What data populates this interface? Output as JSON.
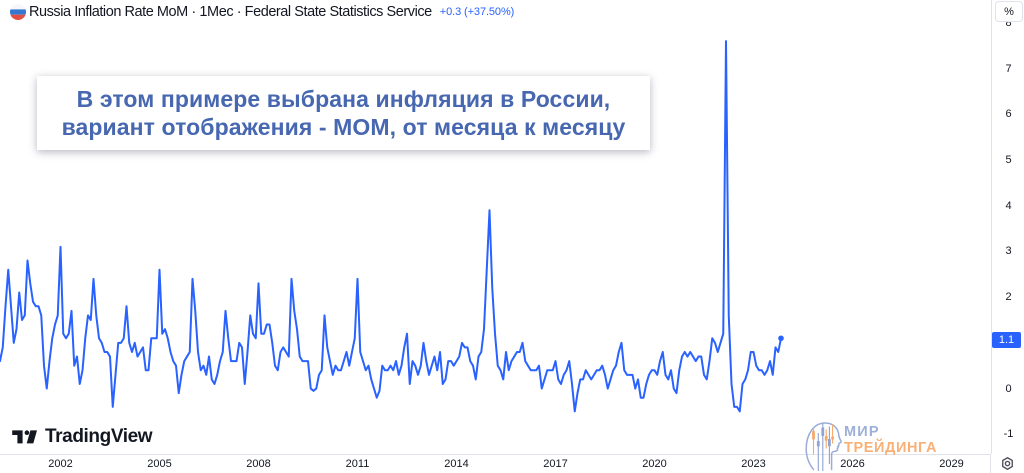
{
  "header": {
    "flag_alt": "Russia flag",
    "title": "Russia Inflation Rate MoM · 1Мес · Federal State Statistics Service",
    "change": "+0.3 (+37.50%)",
    "change_color": "#2962FF",
    "flag_colors": {
      "top": "#f5f7fa",
      "middle": "#3678d0",
      "bottom": "#e54d42"
    }
  },
  "overlay_note": {
    "line1": "В этом примере выбрана инфляция в России,",
    "line2": "вариант отображения - MOM, от месяца к месяцу",
    "text_color": "#4767b0",
    "background": "#ffffff"
  },
  "price_scale": {
    "unit_button_label": "%",
    "tick_labels": [
      "8",
      "7",
      "6",
      "5",
      "4",
      "3",
      "2",
      "0",
      "-1"
    ],
    "last_price_label": "1.1",
    "last_price_badge_color": "#2962FF"
  },
  "time_scale": {
    "tick_labels": [
      "2002",
      "2005",
      "2008",
      "2011",
      "2014",
      "2017",
      "2020",
      "2023",
      "2026",
      "2029"
    ]
  },
  "branding": {
    "logo_text": "TradingView",
    "logo_color": "#131722"
  },
  "watermark": {
    "line1": "МИР",
    "line2": "ТРЕЙДИНГА",
    "line1_color": "#9db0d9",
    "line2_color": "#f8b077",
    "icon_blue": "#8fa3d4",
    "icon_orange": "#f5a96b"
  },
  "chart_data": {
    "type": "line",
    "title": "Russia Inflation Rate MoM",
    "series_name": "Russia Inflation Rate MoM, % (monthly)",
    "line_color": "#2962FF",
    "y_unit": "%",
    "grid": "off",
    "x_tick_labels": [
      "2002",
      "2005",
      "2008",
      "2011",
      "2014",
      "2017",
      "2020",
      "2023",
      "2026",
      "2029"
    ],
    "y_tick_values": [
      8,
      7,
      6,
      5,
      4,
      3,
      2,
      0,
      -1
    ],
    "x_range_years": [
      2000.1667,
      2030.1667
    ],
    "y_range": [
      -1.41,
      8.5
    ],
    "start_year": 2000,
    "start_month": 1,
    "last_value": 1.1,
    "values": [
      2.3,
      1.0,
      0.6,
      0.9,
      1.8,
      2.6,
      1.8,
      1.0,
      1.3,
      2.1,
      1.5,
      1.6,
      2.8,
      2.3,
      1.9,
      1.8,
      1.8,
      1.6,
      0.5,
      0.0,
      0.6,
      1.1,
      1.4,
      1.6,
      3.1,
      1.2,
      1.1,
      1.2,
      1.7,
      0.5,
      0.7,
      0.1,
      0.4,
      1.1,
      1.6,
      1.5,
      2.4,
      1.6,
      1.1,
      1.0,
      0.8,
      0.8,
      0.7,
      -0.4,
      0.3,
      1.0,
      1.0,
      1.1,
      1.8,
      1.0,
      0.8,
      1.0,
      0.7,
      0.8,
      0.9,
      0.4,
      0.4,
      1.1,
      1.1,
      1.1,
      2.6,
      1.2,
      1.3,
      1.1,
      0.8,
      0.6,
      0.5,
      -0.1,
      0.3,
      0.6,
      0.7,
      0.8,
      2.4,
      1.7,
      0.8,
      0.4,
      0.5,
      0.3,
      0.7,
      0.2,
      0.1,
      0.3,
      0.6,
      0.8,
      1.7,
      1.1,
      0.6,
      0.6,
      0.6,
      1.0,
      0.9,
      0.1,
      0.8,
      1.6,
      1.2,
      1.1,
      2.3,
      1.2,
      1.2,
      1.4,
      1.4,
      1.0,
      0.5,
      0.4,
      0.8,
      0.9,
      0.8,
      0.7,
      2.4,
      1.7,
      1.3,
      0.7,
      0.6,
      0.6,
      0.6,
      0.0,
      -0.05,
      0.0,
      0.3,
      0.4,
      1.6,
      0.9,
      0.6,
      0.3,
      0.5,
      0.4,
      0.4,
      0.6,
      0.8,
      0.5,
      0.8,
      1.1,
      2.4,
      0.8,
      0.6,
      0.4,
      0.5,
      0.2,
      0.0,
      -0.2,
      -0.05,
      0.5,
      0.4,
      0.4,
      0.5,
      0.4,
      0.6,
      0.3,
      0.5,
      0.9,
      1.2,
      0.1,
      0.6,
      0.5,
      0.3,
      0.5,
      1.0,
      0.6,
      0.3,
      0.5,
      0.7,
      0.4,
      0.8,
      0.1,
      0.2,
      0.6,
      0.6,
      0.5,
      0.6,
      0.7,
      1.0,
      0.9,
      0.9,
      0.6,
      0.5,
      0.2,
      0.7,
      0.8,
      1.3,
      2.6,
      3.9,
      2.2,
      1.2,
      0.5,
      0.4,
      0.2,
      0.8,
      0.4,
      0.6,
      0.7,
      0.8,
      0.8,
      1.0,
      0.6,
      0.5,
      0.4,
      0.4,
      0.4,
      0.5,
      0.0,
      0.2,
      0.4,
      0.4,
      0.4,
      0.6,
      0.2,
      0.1,
      0.3,
      0.4,
      0.6,
      0.1,
      -0.5,
      -0.1,
      0.2,
      0.2,
      0.4,
      0.3,
      0.2,
      0.3,
      0.4,
      0.4,
      0.5,
      0.3,
      0.0,
      0.2,
      0.4,
      0.5,
      0.8,
      1.0,
      0.4,
      0.3,
      0.3,
      0.3,
      0.0,
      0.2,
      -0.2,
      -0.2,
      0.1,
      0.3,
      0.4,
      0.4,
      0.3,
      0.6,
      0.8,
      0.3,
      0.2,
      0.4,
      0.0,
      -0.1,
      0.4,
      0.7,
      0.8,
      0.7,
      0.8,
      0.7,
      0.6,
      0.7,
      0.7,
      0.3,
      0.2,
      0.6,
      1.1,
      1.0,
      0.8,
      1.0,
      1.2,
      7.6,
      1.6,
      0.1,
      -0.4,
      -0.4,
      -0.5,
      0.1,
      0.2,
      0.4,
      0.8,
      0.8,
      0.5,
      0.4,
      0.4,
      0.3,
      0.4,
      0.6,
      0.3,
      0.9,
      0.8,
      1.1
    ]
  }
}
